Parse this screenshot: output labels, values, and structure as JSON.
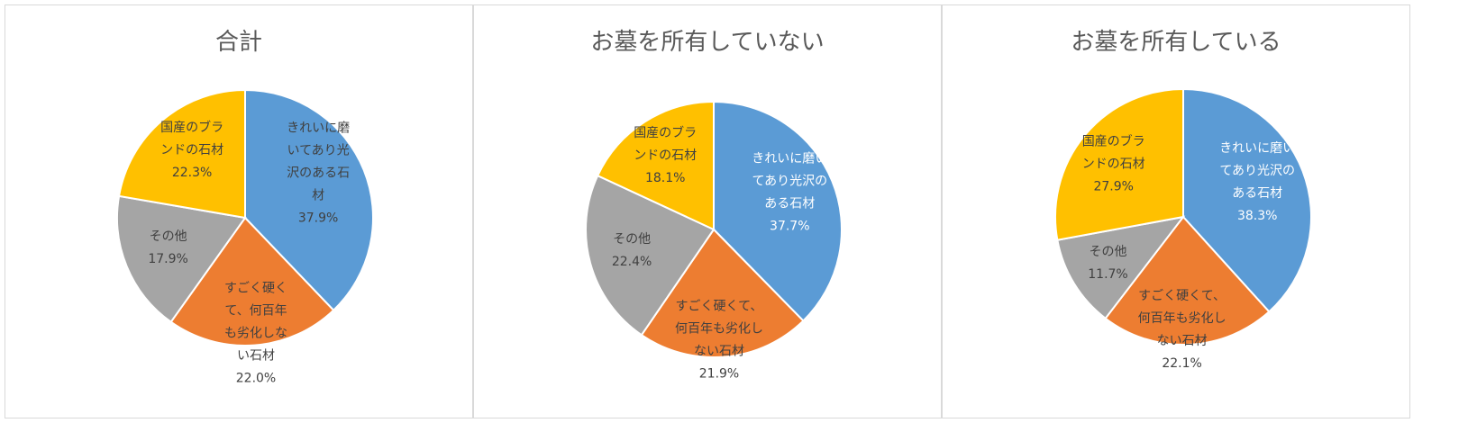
{
  "chart_data": [
    {
      "type": "pie",
      "title": "合計",
      "slices": [
        {
          "label_lines": [
            "きれいに磨",
            "いてあり光",
            "沢のある石",
            "材"
          ],
          "value": 37.9,
          "display": "37.9%",
          "color": "#5b9bd5"
        },
        {
          "label_lines": [
            "すごく硬く",
            "て、何百年",
            "も劣化しな",
            "い石材"
          ],
          "value": 22.0,
          "display": "22.0%",
          "color": "#ed7d31"
        },
        {
          "label_lines": [
            "その他"
          ],
          "value": 17.9,
          "display": "17.9%",
          "color": "#a5a5a5"
        },
        {
          "label_lines": [
            "国産のブラ",
            "ンドの石材"
          ],
          "value": 22.3,
          "display": "22.3%",
          "color": "#ffc000"
        }
      ]
    },
    {
      "type": "pie",
      "title": "お墓を所有していない",
      "slices": [
        {
          "label_lines": [
            "きれいに磨い",
            "てあり光沢の",
            "ある石材"
          ],
          "value": 37.7,
          "display": "37.7%",
          "color": "#5b9bd5"
        },
        {
          "label_lines": [
            "すごく硬くて、",
            "何百年も劣化し",
            "ない石材"
          ],
          "value": 21.9,
          "display": "21.9%",
          "color": "#ed7d31"
        },
        {
          "label_lines": [
            "その他"
          ],
          "value": 22.4,
          "display": "22.4%",
          "color": "#a5a5a5"
        },
        {
          "label_lines": [
            "国産のブラ",
            "ンドの石材"
          ],
          "value": 18.1,
          "display": "18.1%",
          "color": "#ffc000"
        }
      ]
    },
    {
      "type": "pie",
      "title": "お墓を所有している",
      "slices": [
        {
          "label_lines": [
            "きれいに磨い",
            "てあり光沢の",
            "ある石材"
          ],
          "value": 38.3,
          "display": "38.3%",
          "color": "#5b9bd5"
        },
        {
          "label_lines": [
            "すごく硬くて、",
            "何百年も劣化し",
            "ない石材"
          ],
          "value": 22.1,
          "display": "22.1%",
          "color": "#ed7d31"
        },
        {
          "label_lines": [
            "その他"
          ],
          "value": 11.7,
          "display": "11.7%",
          "color": "#a5a5a5"
        },
        {
          "label_lines": [
            "国産のブラ",
            "ンドの石材"
          ],
          "value": 27.9,
          "display": "27.9%",
          "color": "#ffc000"
        }
      ]
    }
  ]
}
